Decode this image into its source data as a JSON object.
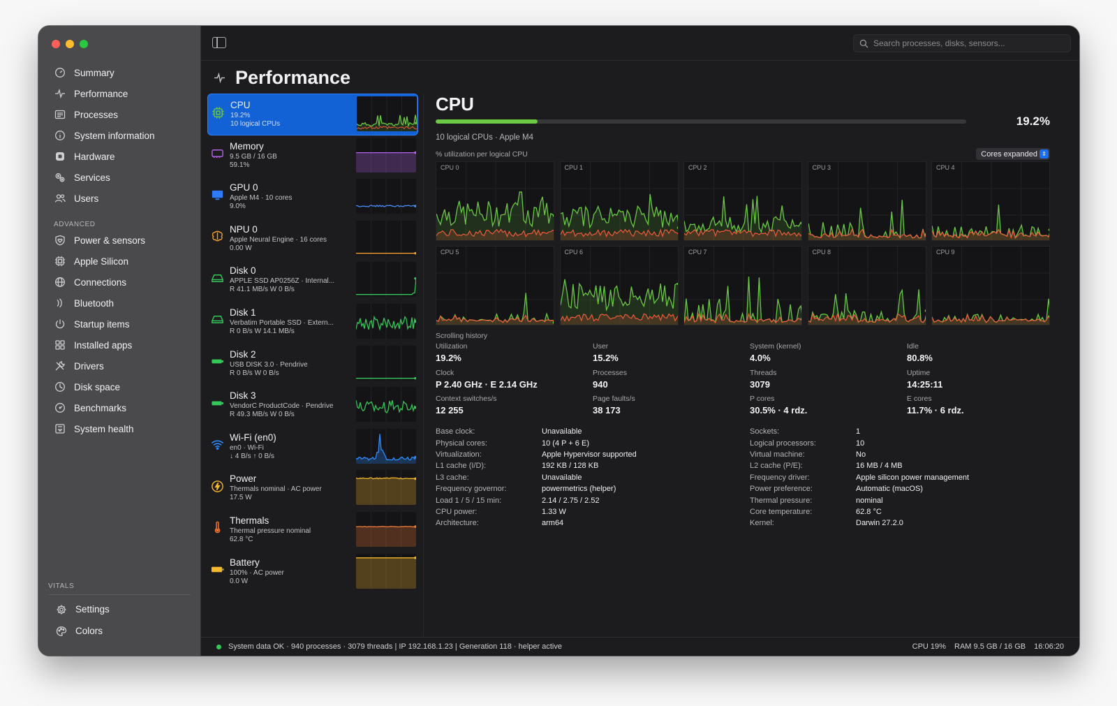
{
  "sidebar": {
    "items": [
      {
        "label": "Summary",
        "icon": "gauge-icon"
      },
      {
        "label": "Performance",
        "icon": "pulse-icon"
      },
      {
        "label": "Processes",
        "icon": "list-icon"
      },
      {
        "label": "System information",
        "icon": "info-icon"
      },
      {
        "label": "Hardware",
        "icon": "chip-icon"
      },
      {
        "label": "Services",
        "icon": "gears-icon"
      },
      {
        "label": "Users",
        "icon": "users-icon"
      }
    ],
    "advanced_label": "ADVANCED",
    "advanced_items": [
      {
        "label": "Power & sensors",
        "icon": "shield-heart-icon"
      },
      {
        "label": "Apple Silicon",
        "icon": "cpu-icon"
      },
      {
        "label": "Connections",
        "icon": "globe-icon"
      },
      {
        "label": "Bluetooth",
        "icon": "bluetooth-icon"
      },
      {
        "label": "Startup items",
        "icon": "power-icon"
      },
      {
        "label": "Installed apps",
        "icon": "apps-grid-icon"
      },
      {
        "label": "Drivers",
        "icon": "wrench-icon"
      },
      {
        "label": "Disk space",
        "icon": "pie-icon"
      },
      {
        "label": "Benchmarks",
        "icon": "speedometer-icon"
      },
      {
        "label": "System health",
        "icon": "health-icon"
      }
    ],
    "vitals_label": "VITALS",
    "bottom_items": [
      {
        "label": "Settings",
        "icon": "gear-icon"
      },
      {
        "label": "Colors",
        "icon": "palette-icon"
      }
    ]
  },
  "search": {
    "placeholder": "Search processes, disks, sensors..."
  },
  "page": {
    "title": "Performance"
  },
  "devices": [
    {
      "name": "CPU",
      "line1": "19.2%",
      "line2": "10 logical CPUs",
      "color": "#6bc943",
      "kind": "cpu"
    },
    {
      "name": "Memory",
      "line1": "9.5 GB / 16 GB",
      "line2": "59.1%",
      "color": "#b463e8",
      "kind": "memory"
    },
    {
      "name": "GPU 0",
      "line1": "Apple M4 · 10 cores",
      "line2": "9.0%",
      "color": "#4a8dff",
      "kind": "gpu"
    },
    {
      "name": "NPU 0",
      "line1": "Apple Neural Engine · 16 cores",
      "line2": "0.00 W",
      "color": "#f0a030",
      "kind": "npu"
    },
    {
      "name": "Disk 0",
      "line1": "APPLE SSD AP0256Z · Internal...",
      "line2": "R 41.1 MB/s  W 0 B/s",
      "color": "#34c759",
      "kind": "disk0"
    },
    {
      "name": "Disk 1",
      "line1": "Verbatim Portable SSD · Extern...",
      "line2": "R 0 B/s  W 14.1 MB/s",
      "color": "#34c759",
      "kind": "disk1"
    },
    {
      "name": "Disk 2",
      "line1": "USB DISK 3.0 · Pendrive",
      "line2": "R 0 B/s  W 0 B/s",
      "color": "#34c759",
      "kind": "disk2"
    },
    {
      "name": "Disk 3",
      "line1": "VendorC ProductCode · Pendrive",
      "line2": "R 49.3 MB/s  W 0 B/s",
      "color": "#34c759",
      "kind": "disk3"
    },
    {
      "name": "Wi-Fi (en0)",
      "line1": "en0 · Wi-Fi",
      "line2": "↓ 4 B/s  ↑ 0 B/s",
      "color": "#2f8bff",
      "kind": "wifi"
    },
    {
      "name": "Power",
      "line1": "Thermals nominal · AC power",
      "line2": "17.5 W",
      "color": "#f5b82e",
      "kind": "power"
    },
    {
      "name": "Thermals",
      "line1": "Thermal pressure nominal",
      "line2": "62.8 °C",
      "color": "#f07a3a",
      "kind": "thermals"
    },
    {
      "name": "Battery",
      "line1": "100% · AC power",
      "line2": "0.0 W",
      "color": "#f5b82e",
      "kind": "battery"
    }
  ],
  "cpu": {
    "title": "CPU",
    "utilization": 19.2,
    "utilization_text": "19.2%",
    "subtitle": "10 logical CPUs · Apple M4",
    "per_cpu_label": "% utilization per logical CPU",
    "cores_mode": "Cores expanded",
    "cores": [
      "CPU 0",
      "CPU 1",
      "CPU 2",
      "CPU 3",
      "CPU 4",
      "CPU 5",
      "CPU 6",
      "CPU 7",
      "CPU 8",
      "CPU 9"
    ],
    "scrolling_label": "Scrolling history",
    "stats": [
      {
        "label": "Utilization",
        "value": "19.2%"
      },
      {
        "label": "User",
        "value": "15.2%"
      },
      {
        "label": "System (kernel)",
        "value": "4.0%"
      },
      {
        "label": "Idle",
        "value": "80.8%"
      },
      {
        "label": "Clock",
        "value": "P 2.40 GHz · E 2.14 GHz"
      },
      {
        "label": "Processes",
        "value": "940"
      },
      {
        "label": "Threads",
        "value": "3079"
      },
      {
        "label": "Uptime",
        "value": "14:25:11"
      },
      {
        "label": "Context switches/s",
        "value": "12 255"
      },
      {
        "label": "Page faults/s",
        "value": "38 173"
      },
      {
        "label": "P cores",
        "value": "30.5% · 4 rdz."
      },
      {
        "label": "E cores",
        "value": "11.7% · 6 rdz."
      }
    ],
    "props_left": [
      {
        "k": "Base clock:",
        "v": "Unavailable"
      },
      {
        "k": "Physical cores:",
        "v": "10 (4 P + 6 E)"
      },
      {
        "k": "Virtualization:",
        "v": "Apple Hypervisor supported"
      },
      {
        "k": "L1 cache (I/D):",
        "v": "192 KB / 128 KB"
      },
      {
        "k": "L3 cache:",
        "v": "Unavailable"
      },
      {
        "k": "Frequency governor:",
        "v": "powermetrics (helper)"
      },
      {
        "k": "Load 1 / 5 / 15 min:",
        "v": "2.14 / 2.75 / 2.52"
      },
      {
        "k": "CPU power:",
        "v": "1.33 W"
      },
      {
        "k": "Architecture:",
        "v": "arm64"
      }
    ],
    "props_right": [
      {
        "k": "Sockets:",
        "v": "1"
      },
      {
        "k": "Logical processors:",
        "v": "10"
      },
      {
        "k": "Virtual machine:",
        "v": "No"
      },
      {
        "k": "L2 cache (P/E):",
        "v": "16 MB / 4 MB"
      },
      {
        "k": "Frequency driver:",
        "v": "Apple silicon power management"
      },
      {
        "k": "Power preference:",
        "v": "Automatic (macOS)"
      },
      {
        "k": "Thermal pressure:",
        "v": "nominal"
      },
      {
        "k": "Core temperature:",
        "v": "62.8 °C"
      },
      {
        "k": "Kernel:",
        "v": "Darwin 27.2.0"
      }
    ]
  },
  "status": {
    "left": "System data OK · 940 processes · 3079 threads   |   IP 192.168.1.23   |   Generation 118 · helper active",
    "cpu": "CPU 19%",
    "ram": "RAM 9.5 GB / 16 GB",
    "time": "16:06:20"
  },
  "colors": {
    "accent": "#1262d5",
    "cpu_green": "#6bc943",
    "kernel_red": "#ef5a3c"
  }
}
